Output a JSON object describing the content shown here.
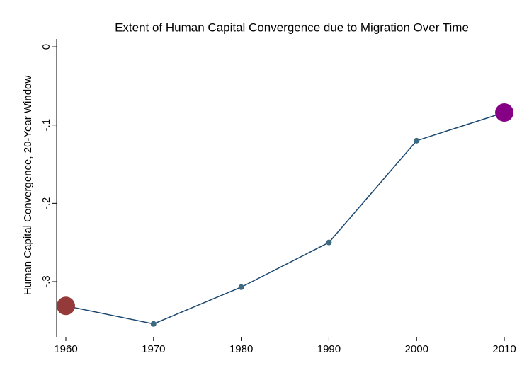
{
  "chart_data": {
    "type": "line",
    "title": "Extent of Human Capital Convergence due to Migration Over Time",
    "y_label": "Human Capital Convergence, 20-Year Window",
    "x": [
      1960,
      1970,
      1980,
      1990,
      2000,
      2010
    ],
    "series": [
      {
        "color": "#1a476f",
        "marker_color": "#3d6a80",
        "values": [
          -0.331,
          -0.354,
          -0.307,
          -0.25,
          -0.12,
          -0.084
        ],
        "point_colors": [
          "#943a3a",
          "#3d6a80",
          "#3d6a80",
          "#3d6a80",
          "#3d6a80",
          "#850085"
        ]
      }
    ],
    "xlim": [
      1958.95,
      2011.45
    ],
    "xticks": [
      1960,
      1970,
      1980,
      1990,
      2000,
      2010
    ],
    "ylim": [
      -0.3705,
      0.01
    ],
    "yticks": [
      0,
      {
        "value": -0.1,
        "label": "-.1"
      },
      {
        "value": -0.2,
        "label": "-.2"
      },
      {
        "value": -0.3,
        "label": "-.3"
      }
    ],
    "grid": false
  }
}
